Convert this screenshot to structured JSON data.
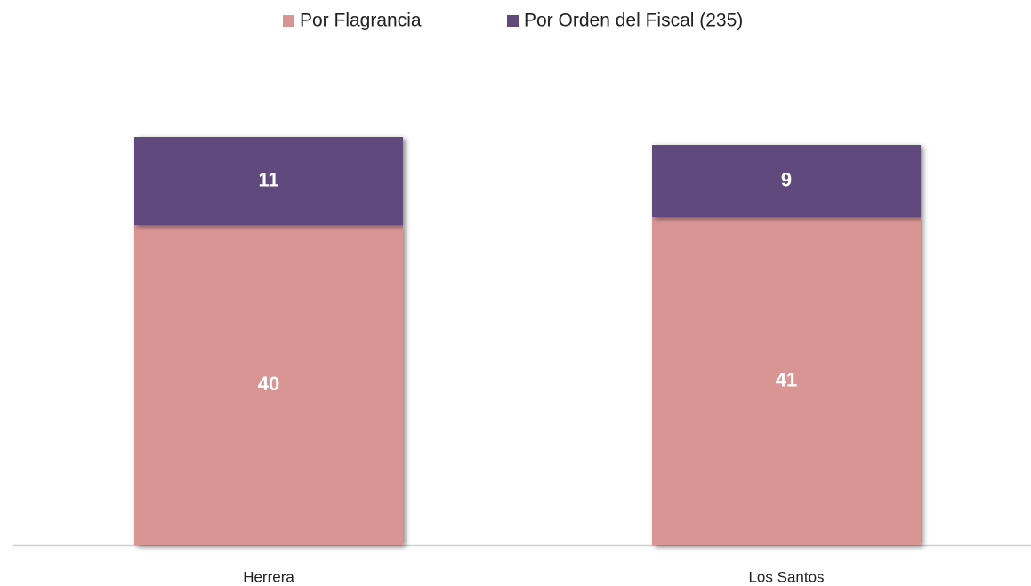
{
  "chart_data": {
    "type": "stacked_bar",
    "categories": [
      "Herrera",
      "Los Santos"
    ],
    "series": [
      {
        "name": "Por Flagrancia",
        "color": "#d99594",
        "values": [
          40,
          41
        ]
      },
      {
        "name": "Por Orden del Fiscal (235)",
        "color": "#604a7b",
        "values": [
          11,
          9
        ]
      }
    ],
    "legend": "top"
  }
}
